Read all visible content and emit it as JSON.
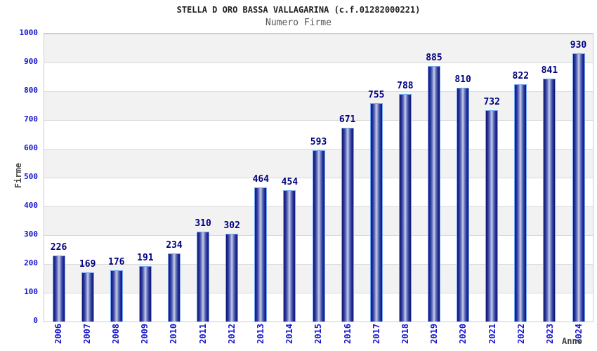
{
  "header": {
    "title": "STELLA D ORO BASSA VALLAGARINA (c.f.01282000221)",
    "subtitle": "Numero Firme"
  },
  "chart_data": {
    "type": "bar",
    "title": "STELLA D ORO BASSA VALLAGARINA (c.f.01282000221)",
    "subtitle": "Numero Firme",
    "xlabel": "Anno",
    "ylabel": "Firme",
    "ylim": [
      0,
      1000
    ],
    "y_ticks": [
      1000,
      900,
      800,
      700,
      600,
      500,
      400,
      300,
      200,
      100,
      0
    ],
    "categories": [
      "2006",
      "2007",
      "2008",
      "2009",
      "2010",
      "2011",
      "2012",
      "2013",
      "2014",
      "2015",
      "2016",
      "2017",
      "2018",
      "2019",
      "2020",
      "2021",
      "2022",
      "2023",
      "2024"
    ],
    "values": [
      226,
      169,
      176,
      191,
      234,
      310,
      302,
      464,
      454,
      593,
      671,
      755,
      788,
      885,
      810,
      732,
      822,
      841,
      930
    ],
    "legend": "none",
    "grid": "horizontal gridlines every 100 with alternating gray/white bands",
    "colors": {
      "bar_dark": "#10156e",
      "bar_mid": "#2a37a0",
      "bar_highlight": "#c9cfe9",
      "bar_border": "#74a7f2",
      "value_label": "#000080",
      "axis_tick_text": "#1515cc",
      "axis_name_text": "#444444",
      "band_gray": "#f2f2f2",
      "grid_line": "#d9d9d9",
      "plot_border": "#cccccc",
      "title_text": "#222222",
      "subtitle_text": "#555555"
    }
  }
}
